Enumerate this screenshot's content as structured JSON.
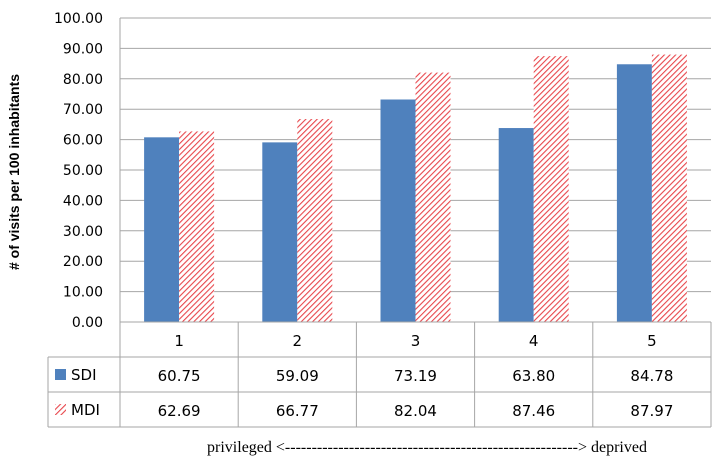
{
  "chart_data": {
    "type": "bar",
    "title": "",
    "xlabel": "privileged <-------------------------------------------------------> deprived",
    "ylabel": "# of visits per 100 inhabitants",
    "categories": [
      "1",
      "2",
      "3",
      "4",
      "5"
    ],
    "ylim": [
      0,
      100
    ],
    "ytick_step": 10,
    "yticks": [
      "0.00",
      "10.00",
      "20.00",
      "30.00",
      "40.00",
      "50.00",
      "60.00",
      "70.00",
      "80.00",
      "90.00",
      "100.00"
    ],
    "grid": true,
    "legend": "data-table-left",
    "series": [
      {
        "name": "SDI",
        "color": "#4f81bd",
        "pattern": "solid",
        "values": [
          60.75,
          59.09,
          73.19,
          63.8,
          84.78
        ],
        "labels": [
          "60.75",
          "59.09",
          "73.19",
          "63.80",
          "84.78"
        ]
      },
      {
        "name": "MDI",
        "color": "#e8464b",
        "pattern": "diagonal-hatch",
        "values": [
          62.69,
          66.77,
          82.04,
          87.46,
          87.97
        ],
        "labels": [
          "62.69",
          "66.77",
          "82.04",
          "87.46",
          "87.97"
        ]
      }
    ]
  }
}
